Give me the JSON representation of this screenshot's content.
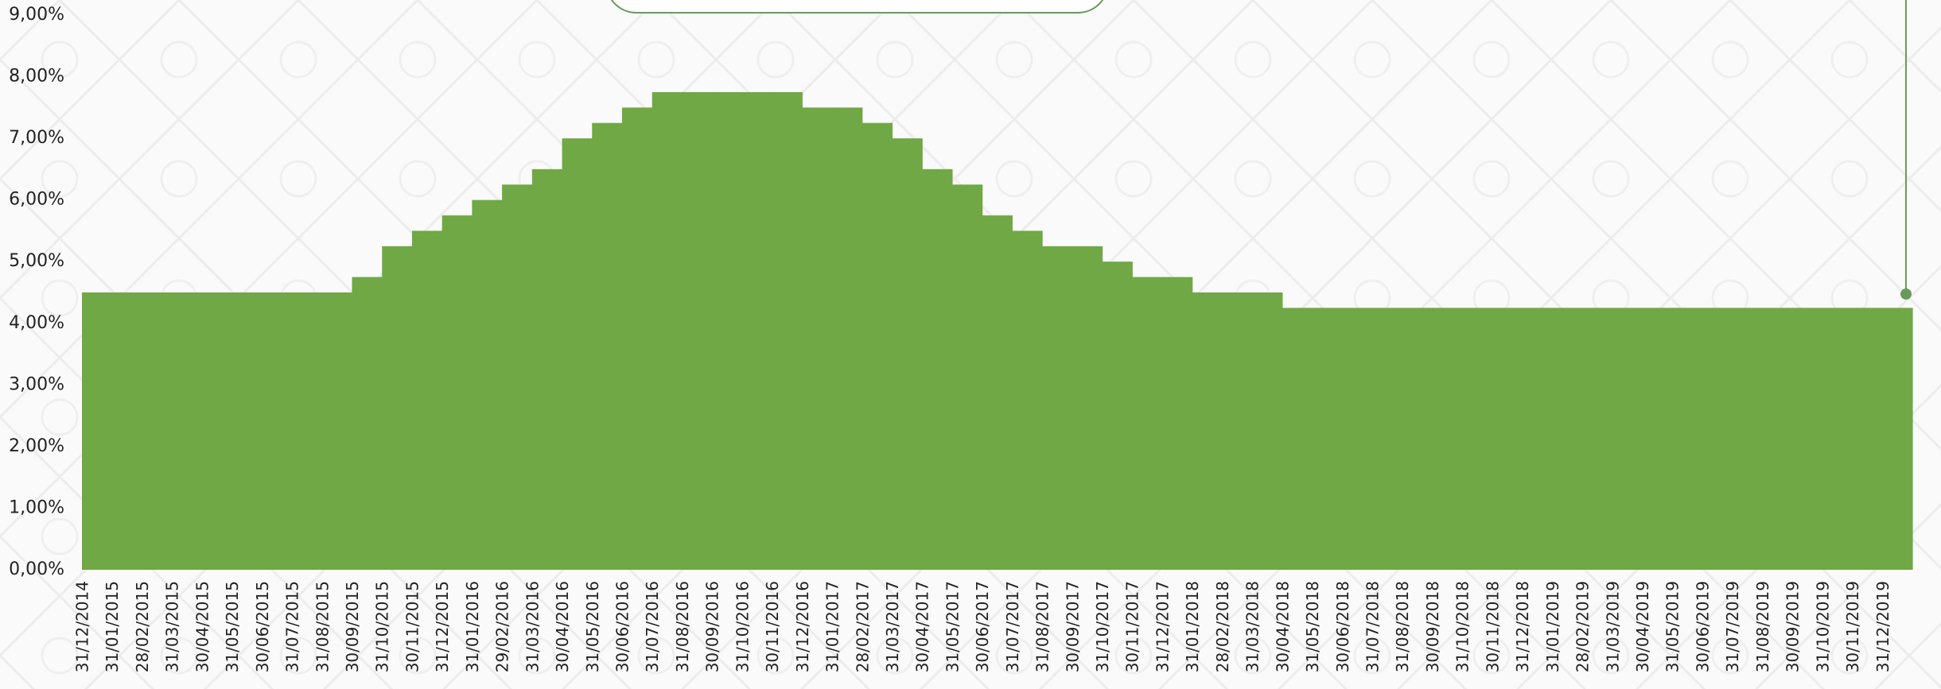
{
  "chart_data": {
    "type": "area",
    "step": "after",
    "color": "#70a845",
    "categories": [
      "31/12/2014",
      "31/01/2015",
      "28/02/2015",
      "31/03/2015",
      "30/04/2015",
      "31/05/2015",
      "30/06/2015",
      "31/07/2015",
      "31/08/2015",
      "30/09/2015",
      "31/10/2015",
      "30/11/2015",
      "31/12/2015",
      "31/01/2016",
      "29/02/2016",
      "31/03/2016",
      "30/04/2016",
      "31/05/2016",
      "30/06/2016",
      "31/07/2016",
      "31/08/2016",
      "30/09/2016",
      "31/10/2016",
      "30/11/2016",
      "31/12/2016",
      "31/01/2017",
      "28/02/2017",
      "31/03/2017",
      "30/04/2017",
      "31/05/2017",
      "30/06/2017",
      "31/07/2017",
      "31/08/2017",
      "30/09/2017",
      "31/10/2017",
      "30/11/2017",
      "31/12/2017",
      "31/01/2018",
      "28/02/2018",
      "31/03/2018",
      "30/04/2018",
      "31/05/2018",
      "30/06/2018",
      "31/07/2018",
      "31/08/2018",
      "30/09/2018",
      "31/10/2018",
      "30/11/2018",
      "31/12/2018",
      "31/01/2019",
      "28/02/2019",
      "31/03/2019",
      "30/04/2019",
      "31/05/2019",
      "30/06/2019",
      "31/07/2019",
      "31/08/2019",
      "30/09/2019",
      "31/10/2019",
      "30/11/2019",
      "31/12/2019"
    ],
    "values": [
      4.5,
      4.5,
      4.5,
      4.5,
      4.5,
      4.5,
      4.5,
      4.5,
      4.5,
      4.75,
      5.25,
      5.5,
      5.75,
      6.0,
      6.25,
      6.5,
      7.0,
      7.25,
      7.5,
      7.75,
      7.75,
      7.75,
      7.75,
      7.75,
      7.5,
      7.5,
      7.25,
      7.0,
      6.5,
      6.25,
      5.75,
      5.5,
      5.25,
      5.25,
      5.0,
      4.75,
      4.75,
      4.5,
      4.5,
      4.5,
      4.25,
      4.25,
      4.25,
      4.25,
      4.25,
      4.25,
      4.25,
      4.25,
      4.25,
      4.25,
      4.25,
      4.25,
      4.25,
      4.25,
      4.25,
      4.25,
      4.25,
      4.25,
      4.25,
      4.25,
      4.25
    ],
    "ylim": [
      0,
      9
    ],
    "yticks": [
      {
        "value": 0,
        "label": "0,00%"
      },
      {
        "value": 1,
        "label": "1,00%"
      },
      {
        "value": 2,
        "label": "2,00%"
      },
      {
        "value": 3,
        "label": "3,00%"
      },
      {
        "value": 4,
        "label": "4,00%"
      },
      {
        "value": 5,
        "label": "5,00%"
      },
      {
        "value": 6,
        "label": "6,00%"
      },
      {
        "value": 7,
        "label": "7,00%"
      },
      {
        "value": 8,
        "label": "8,00%"
      },
      {
        "value": 9,
        "label": "9,00%"
      }
    ]
  }
}
